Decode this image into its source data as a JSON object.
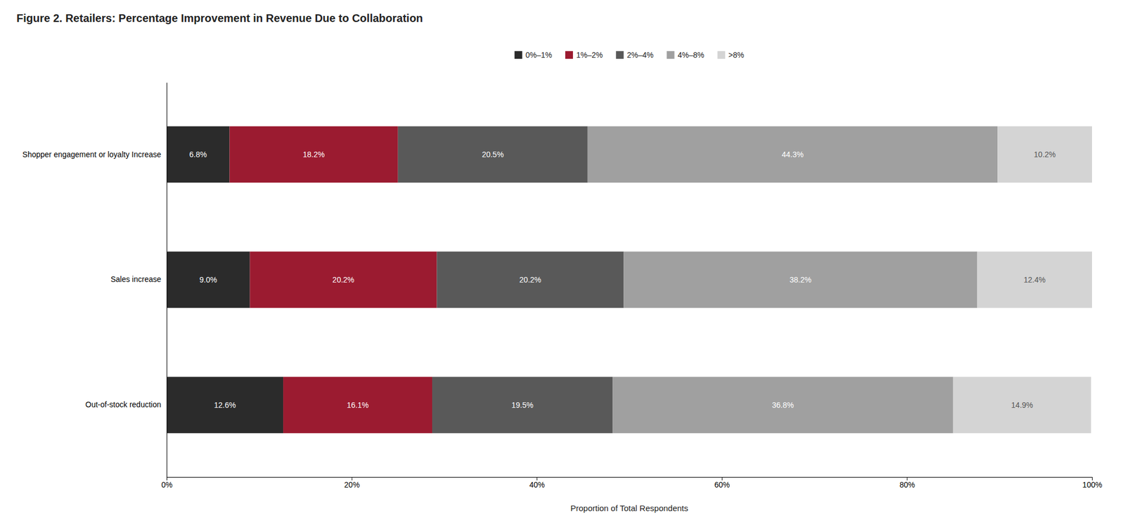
{
  "chart_data": {
    "type": "bar",
    "orientation": "horizontal",
    "stacked": true,
    "data_labels": true,
    "grid": false,
    "legend": "top",
    "title": "Figure 2. Retailers: Percentage Improvement in Revenue Due to Collaboration",
    "xlabel": "Proportion of Total Respondents",
    "categories": [
      "Shopper engagement or loyalty Increase",
      "Sales increase",
      "Out-of-stock reduction"
    ],
    "series": [
      {
        "name": "0%–1%",
        "color": "#2b2b2b",
        "values": [
          6.8,
          9.0,
          12.6
        ],
        "value_labels": [
          "6.8%",
          "9.0%",
          "12.6%"
        ]
      },
      {
        "name": "1%–2%",
        "color": "#9b1b30",
        "values": [
          18.2,
          20.2,
          16.1
        ],
        "value_labels": [
          "18.2%",
          "20.2%",
          "16.1%"
        ]
      },
      {
        "name": "2%–4%",
        "color": "#595959",
        "values": [
          20.5,
          20.2,
          19.5
        ],
        "value_labels": [
          "20.5%",
          "20.2%",
          "19.5%"
        ]
      },
      {
        "name": "4%–8%",
        "color": "#a0a0a0",
        "values": [
          44.3,
          38.2,
          36.8
        ],
        "value_labels": [
          "44.3%",
          "38.2%",
          "36.8%"
        ]
      },
      {
        "name": ">8%",
        "color": "#d4d4d4",
        "values": [
          10.2,
          12.4,
          14.9
        ],
        "value_labels": [
          "10.2%",
          "12.4%",
          "14.9%"
        ]
      }
    ],
    "xlim": [
      0,
      100
    ],
    "xticks": [
      {
        "value": 0,
        "label": "0%"
      },
      {
        "value": 20,
        "label": "20%"
      },
      {
        "value": 40,
        "label": "40%"
      },
      {
        "value": 60,
        "label": "60%"
      },
      {
        "value": 80,
        "label": "80%"
      },
      {
        "value": 100,
        "label": "100%"
      }
    ]
  }
}
